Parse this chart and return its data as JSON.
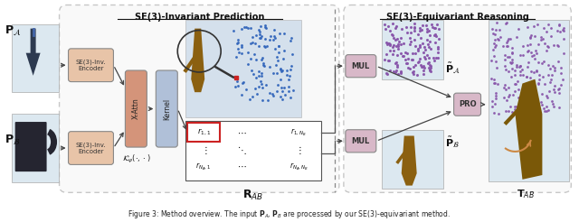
{
  "fig_width": 6.4,
  "fig_height": 2.46,
  "dpi": 100,
  "bg_color": "#ffffff",
  "section1_title": "SE(3)-Invariant Prediction",
  "section2_title": "SE(3)-Equivariant Reasoning",
  "encoder_color": "#e8c4a8",
  "xattn_color": "#d4947a",
  "kernel_color": "#b0c0d8",
  "mul_color": "#d8b8c8",
  "pro_color": "#d8b8c8",
  "scene_bg": "#c8d8e8",
  "thumb_bg": "#dce8f0",
  "encoder1_label": "SE(3)-Inv.\nEncoder",
  "encoder2_label": "SE(3)-Inv.\nEncoder",
  "xattn_label": "X-Attn",
  "kernel_label": "Kernel",
  "mul_label": "MUL",
  "pro_label": "PRO",
  "caption_fontsize": 6.0
}
